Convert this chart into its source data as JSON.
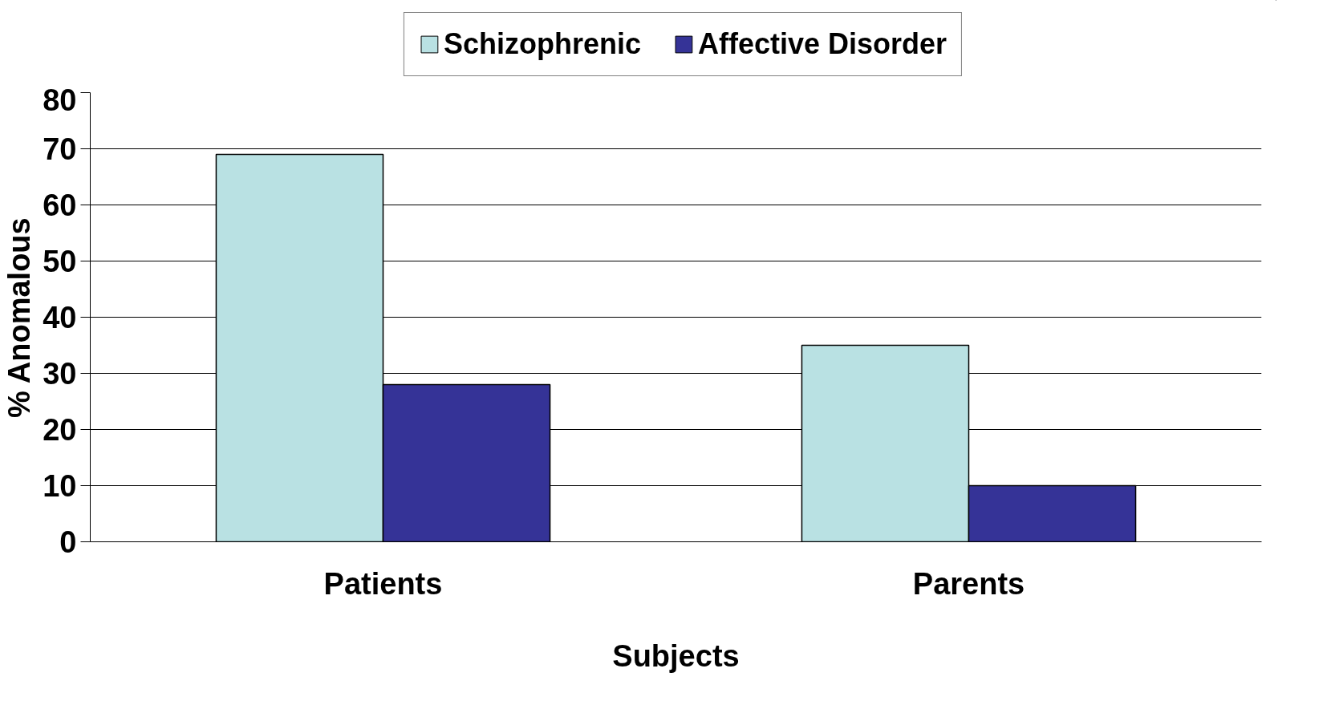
{
  "chart_data": {
    "type": "bar",
    "xlabel": "Subjects",
    "ylabel": "% Anomalous",
    "categories": [
      "Patients",
      "Parents"
    ],
    "series": [
      {
        "name": "Schizophrenic",
        "color": "#b9e1e3",
        "values": [
          69,
          35
        ]
      },
      {
        "name": "Affective Disorder",
        "color": "#353397",
        "values": [
          28,
          10
        ]
      }
    ],
    "ylim": [
      0,
      80
    ],
    "yticks": [
      0,
      10,
      20,
      30,
      40,
      50,
      60,
      70,
      80
    ],
    "grid": "y",
    "legend": "top"
  }
}
